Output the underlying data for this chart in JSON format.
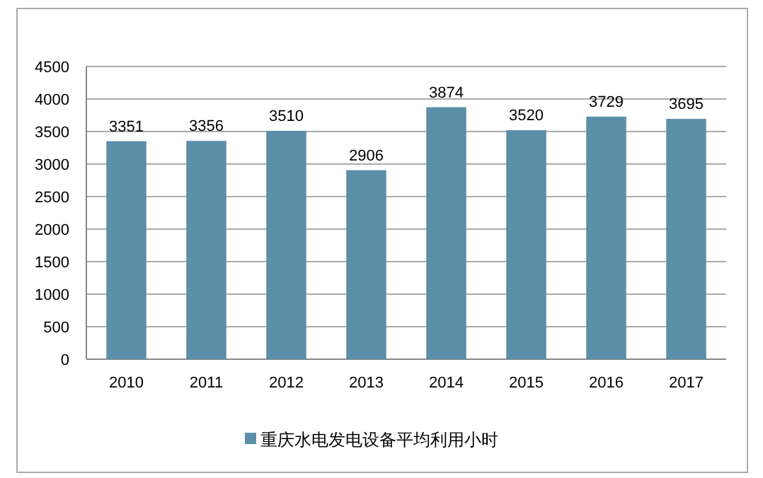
{
  "chart_data": {
    "type": "bar",
    "categories": [
      "2010",
      "2011",
      "2012",
      "2013",
      "2014",
      "2015",
      "2016",
      "2017"
    ],
    "series": [
      {
        "name": "重庆水电发电设备平均利用小时",
        "color": "#5b8fa8",
        "values": [
          3351,
          3356,
          3510,
          2906,
          3874,
          3520,
          3729,
          3695
        ]
      }
    ],
    "ylim": [
      0,
      4500
    ],
    "yticks": [
      0,
      500,
      1000,
      1500,
      2000,
      2500,
      3000,
      3500,
      4000,
      4500
    ],
    "grid": "y",
    "legend": "bottom",
    "data_labels": true
  }
}
